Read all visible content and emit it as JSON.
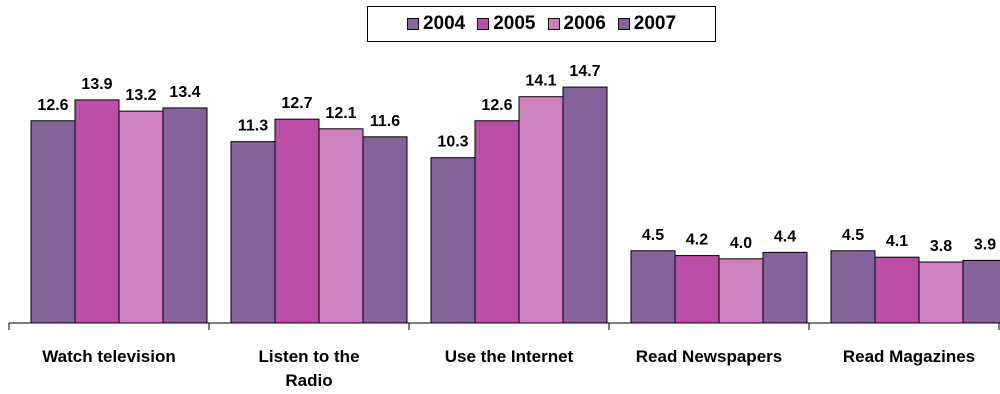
{
  "chart_data": {
    "type": "bar",
    "categories": [
      "Watch television",
      "Listen to the Radio",
      "Use the Internet",
      "Read Newspapers",
      "Read Magazines"
    ],
    "category_lines": [
      [
        "Watch television"
      ],
      [
        "Listen to the",
        "Radio"
      ],
      [
        "Use the Internet"
      ],
      [
        "Read Newspapers"
      ],
      [
        "Read Magazines"
      ]
    ],
    "series": [
      {
        "name": "2004",
        "color": "#84649a",
        "values": [
          12.6,
          11.3,
          10.3,
          4.5,
          4.5
        ]
      },
      {
        "name": "2005",
        "color": "#bb4ea6",
        "values": [
          13.9,
          12.7,
          12.6,
          4.2,
          4.1
        ]
      },
      {
        "name": "2006",
        "color": "#cf80be",
        "values": [
          13.2,
          12.1,
          14.1,
          4.0,
          3.8
        ]
      },
      {
        "name": "2007",
        "color": "#84649a",
        "values": [
          13.4,
          11.6,
          14.7,
          4.4,
          3.9
        ]
      }
    ],
    "value_labels": [
      [
        "12.6",
        "13.9",
        "13.2",
        "13.4"
      ],
      [
        "11.3",
        "12.7",
        "12.1",
        "11.6"
      ],
      [
        "10.3",
        "12.6",
        "14.1",
        "14.7"
      ],
      [
        "4.5",
        "4.2",
        "4.0",
        "4.4"
      ],
      [
        "4.5",
        "4.1",
        "3.8",
        "3.9"
      ]
    ],
    "ylim": [
      0,
      16
    ],
    "grid": false,
    "legend_position": "top-center",
    "title": "",
    "xlabel": "",
    "ylabel": ""
  }
}
